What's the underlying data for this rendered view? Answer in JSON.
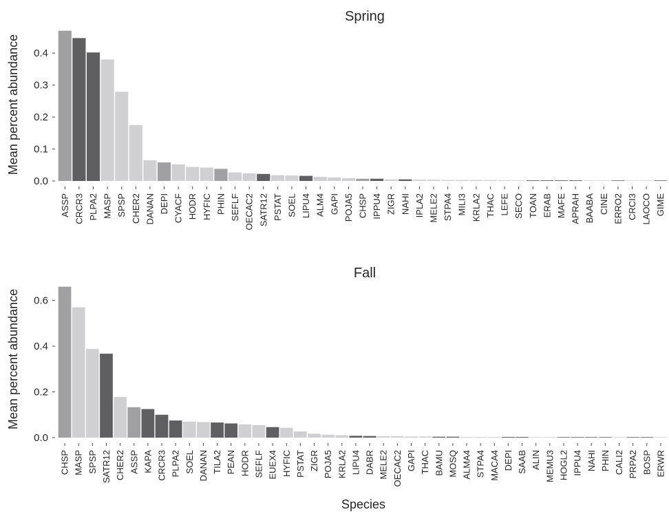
{
  "chart_data": [
    {
      "type": "bar",
      "title": "Spring",
      "ylabel": "Mean percent abundance",
      "xlabel": "",
      "ylim": [
        0,
        0.48
      ],
      "yticks": [
        0.0,
        0.1,
        0.2,
        0.3,
        0.4
      ],
      "categories": [
        "ASSP",
        "CRCR3",
        "PLPA2",
        "MASP",
        "SPSP",
        "CHER2",
        "DANAN",
        "DEPI",
        "CYACF",
        "HODR",
        "HYFIC",
        "PHIN",
        "SEFLF",
        "OECAC2",
        "SATR12",
        "PSTAT",
        "SOEL",
        "LIPU4",
        "ALM4",
        "GAPI",
        "POJA5",
        "CHSP",
        "IPPU4",
        "ZIGR",
        "NAHI",
        "IPLA2",
        "MELE2",
        "STPA4",
        "MILI3",
        "KRLA2",
        "THAC",
        "LEFE",
        "SECO",
        "TOAN",
        "ERAB",
        "MAFE",
        "APRAH",
        "BAABA",
        "CINE",
        "ERRO2",
        "CRCI3",
        "LAOCO",
        "GIME"
      ],
      "values": [
        0.47,
        0.447,
        0.402,
        0.38,
        0.279,
        0.175,
        0.065,
        0.058,
        0.052,
        0.044,
        0.042,
        0.038,
        0.027,
        0.024,
        0.022,
        0.018,
        0.017,
        0.016,
        0.013,
        0.011,
        0.009,
        0.007,
        0.007,
        0.005,
        0.005,
        0.004,
        0.004,
        0.003,
        0.003,
        0.003,
        0.003,
        0.002,
        0.002,
        0.002,
        0.002,
        0.002,
        0.002,
        0.001,
        0.001,
        0.001,
        0.001,
        0.001,
        0.001
      ],
      "bar_colors": [
        "#a0a0a2",
        "#5f5f61",
        "#5f5f61",
        "#d0d0d2",
        "#d0d0d2",
        "#d0d0d2",
        "#d0d0d2",
        "#a0a0a2",
        "#d0d0d2",
        "#d0d0d2",
        "#d0d0d2",
        "#a0a0a2",
        "#d0d0d2",
        "#d0d0d2",
        "#5f5f61",
        "#d0d0d2",
        "#d0d0d2",
        "#5f5f61",
        "#d0d0d2",
        "#d0d0d2",
        "#d0d0d2",
        "#a0a0a2",
        "#5f5f61",
        "#d0d0d2",
        "#5f5f61",
        "#d0d0d2",
        "#d0d0d2",
        "#d0d0d2",
        "#d0d0d2",
        "#d0d0d2",
        "#d0d0d2",
        "#d0d0d2",
        "#d0d0d2",
        "#5f5f61",
        "#5f5f61",
        "#5f5f61",
        "#5f5f61",
        "#d0d0d2",
        "#d0d0d2",
        "#5f5f61",
        "#d0d0d2",
        "#d0d0d2",
        "#5f5f61"
      ],
      "grid": false
    },
    {
      "type": "bar",
      "title": "Fall",
      "ylabel": "Mean percent abundance",
      "xlabel": "Species",
      "ylim": [
        0,
        0.68
      ],
      "yticks": [
        0.0,
        0.2,
        0.4,
        0.6
      ],
      "categories": [
        "CHSP",
        "MASP",
        "SPSP",
        "SATR12",
        "CHER2",
        "ASSP",
        "KAPA",
        "CRCR3",
        "PLPA2",
        "SOEL",
        "DANAN",
        "TILA2",
        "PEAN",
        "HODR",
        "SEFLF",
        "EUEX4",
        "HYFIC",
        "PSTAT",
        "ZIGR",
        "POJA5",
        "KRLA2",
        "LIPU4",
        "DABR",
        "MELE2",
        "OECAC2",
        "GAPI",
        "THAC",
        "BAMU",
        "MOSQ",
        "ALMA4",
        "STPA4",
        "MACA4",
        "DEPI",
        "SAAB",
        "ALIN",
        "MEMU3",
        "HOGL2",
        "IPPU4",
        "NAHI",
        "PHIN",
        "CALI2",
        "PRPA2",
        "BOSP",
        "ERWR"
      ],
      "values": [
        0.66,
        0.57,
        0.388,
        0.367,
        0.178,
        0.133,
        0.125,
        0.1,
        0.075,
        0.07,
        0.068,
        0.066,
        0.062,
        0.058,
        0.055,
        0.046,
        0.043,
        0.027,
        0.017,
        0.013,
        0.01,
        0.008,
        0.007,
        0.006,
        0.006,
        0.005,
        0.005,
        0.004,
        0.004,
        0.003,
        0.003,
        0.003,
        0.003,
        0.003,
        0.002,
        0.002,
        0.002,
        0.002,
        0.002,
        0.002,
        0.002,
        0.002,
        0.002,
        0.001
      ],
      "bar_colors": [
        "#a0a0a2",
        "#d0d0d2",
        "#d0d0d2",
        "#5f5f61",
        "#d0d0d2",
        "#a0a0a2",
        "#5f5f61",
        "#5f5f61",
        "#5f5f61",
        "#d0d0d2",
        "#d0d0d2",
        "#5f5f61",
        "#5f5f61",
        "#d0d0d2",
        "#d0d0d2",
        "#5f5f61",
        "#d0d0d2",
        "#d0d0d2",
        "#d0d0d2",
        "#d0d0d2",
        "#d0d0d2",
        "#5f5f61",
        "#5f5f61",
        "#d0d0d2",
        "#d0d0d2",
        "#d0d0d2",
        "#d0d0d2",
        "#5f5f61",
        "#5f5f61",
        "#d0d0d2",
        "#d0d0d2",
        "#d0d0d2",
        "#5f5f61",
        "#5f5f61",
        "#d0d0d2",
        "#d0d0d2",
        "#5f5f61",
        "#5f5f61",
        "#5f5f61",
        "#5f5f61",
        "#d0d0d2",
        "#5f5f61",
        "#5f5f61",
        "#d0d0d2"
      ],
      "grid": false
    }
  ]
}
